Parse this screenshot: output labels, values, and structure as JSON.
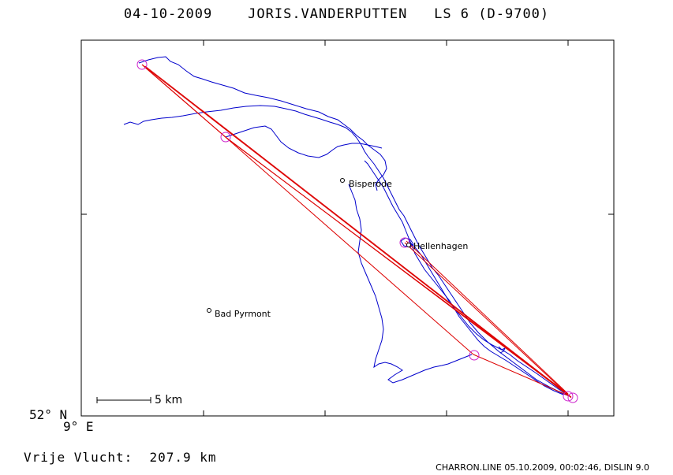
{
  "header": {
    "date": "04-10-2009",
    "pilot": "JORIS.VANDERPUTTEN",
    "glider": "LS 6 (D-9700)"
  },
  "axes": {
    "latitude": "52° N",
    "longitude": "9° E"
  },
  "scale": {
    "label": "5 km"
  },
  "places": [
    {
      "name": "Bisperode"
    },
    {
      "name": "Hellenhagen"
    },
    {
      "name": "Bad Pyrmont"
    }
  ],
  "footer": {
    "free_flight_label": "Vrije Vlucht:",
    "distance": "207.9 km",
    "credit": "CHARRON.LINE 05.10.2009, 00:02:46, DISLIN 9.0"
  },
  "colors": {
    "track": "#0000cc",
    "task_lines": "#dd0000",
    "turnpoints": "#cc22cc",
    "frame": "#000000"
  }
}
